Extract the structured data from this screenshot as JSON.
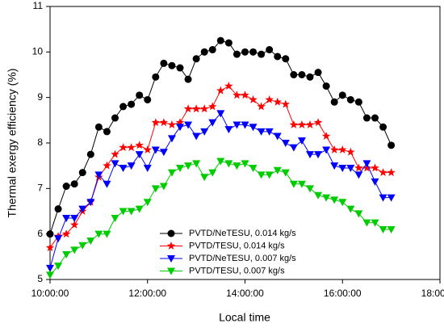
{
  "chart_data": {
    "type": "line",
    "xlabel": "Local time",
    "ylabel": "Thermal exergy efficiency (%)",
    "x": [
      "10:00:00",
      "10:10:00",
      "10:20:00",
      "10:30:00",
      "10:40:00",
      "10:50:00",
      "11:00:00",
      "11:10:00",
      "11:20:00",
      "11:30:00",
      "11:40:00",
      "11:50:00",
      "12:00:00",
      "12:10:00",
      "12:20:00",
      "12:30:00",
      "12:40:00",
      "12:50:00",
      "13:00:00",
      "13:10:00",
      "13:20:00",
      "13:30:00",
      "13:40:00",
      "13:50:00",
      "14:00:00",
      "14:10:00",
      "14:20:00",
      "14:30:00",
      "14:40:00",
      "14:50:00",
      "15:00:00",
      "15:10:00",
      "15:20:00",
      "15:30:00",
      "15:40:00",
      "15:50:00",
      "16:00:00",
      "16:10:00",
      "16:20:00",
      "16:30:00",
      "16:40:00",
      "16:50:00",
      "17:00:00"
    ],
    "series": [
      {
        "name": "PVTD/NeTESU, 0.014 kg/s",
        "color": "#000000",
        "marker": "circle",
        "values": [
          6.0,
          6.55,
          7.05,
          7.1,
          7.35,
          7.75,
          8.35,
          8.25,
          8.55,
          8.8,
          8.85,
          9.05,
          8.95,
          9.45,
          9.75,
          9.7,
          9.65,
          9.4,
          9.85,
          10.0,
          10.05,
          10.25,
          10.2,
          9.95,
          10.0,
          10.0,
          9.95,
          10.05,
          9.9,
          9.85,
          9.5,
          9.5,
          9.45,
          9.55,
          9.25,
          8.9,
          9.05,
          8.95,
          8.9,
          8.55,
          8.55,
          8.35,
          7.95
        ]
      },
      {
        "name": "PVTD/TESU, 0.014 kg/s",
        "color": "#ff0000",
        "marker": "star",
        "values": [
          5.7,
          5.95,
          6.0,
          6.2,
          6.5,
          6.7,
          7.25,
          7.5,
          7.75,
          7.9,
          7.9,
          7.95,
          7.85,
          8.45,
          8.45,
          8.4,
          8.45,
          8.75,
          8.75,
          8.75,
          8.8,
          9.15,
          9.25,
          9.05,
          9.05,
          8.95,
          8.8,
          8.95,
          8.9,
          8.85,
          8.4,
          8.4,
          8.4,
          8.45,
          8.15,
          7.85,
          7.85,
          7.8,
          7.45,
          7.45,
          7.45,
          7.35,
          7.35
        ]
      },
      {
        "name": "PVTD/NeTESU, 0.007 kg/s",
        "color": "#0000ff",
        "marker": "triangle-down",
        "values": [
          5.25,
          5.9,
          6.35,
          6.35,
          6.55,
          6.7,
          7.3,
          7.1,
          7.55,
          7.45,
          7.5,
          7.75,
          7.45,
          7.85,
          7.8,
          8.1,
          8.35,
          8.4,
          8.15,
          8.25,
          8.45,
          8.65,
          8.3,
          8.4,
          8.4,
          8.35,
          8.25,
          8.25,
          8.15,
          8.0,
          7.9,
          8.05,
          7.75,
          7.75,
          7.85,
          7.5,
          7.45,
          7.45,
          7.3,
          7.55,
          7.15,
          6.8,
          6.8
        ]
      },
      {
        "name": "PVTD/TESU, 0.007 kg/s",
        "color": "#00cc00",
        "marker": "triangle-down",
        "values": [
          5.1,
          5.3,
          5.55,
          5.65,
          5.75,
          5.85,
          6.0,
          6.0,
          6.35,
          6.5,
          6.5,
          6.55,
          6.7,
          7.0,
          7.05,
          7.35,
          7.45,
          7.5,
          7.55,
          7.25,
          7.35,
          7.6,
          7.55,
          7.5,
          7.55,
          7.45,
          7.3,
          7.3,
          7.4,
          7.35,
          7.1,
          7.1,
          7.0,
          6.85,
          6.8,
          6.75,
          6.7,
          6.55,
          6.45,
          6.25,
          6.25,
          6.1,
          6.1
        ]
      }
    ],
    "xlim": [
      "10:00:00",
      "18:00:00"
    ],
    "xticks": [
      "10:00:00",
      "12:00:00",
      "14:00:00",
      "16:00:00",
      "18:00:00"
    ],
    "ylim": [
      5,
      11
    ],
    "yticks": [
      5,
      6,
      7,
      8,
      9,
      10,
      11
    ],
    "legend": "lower center"
  }
}
